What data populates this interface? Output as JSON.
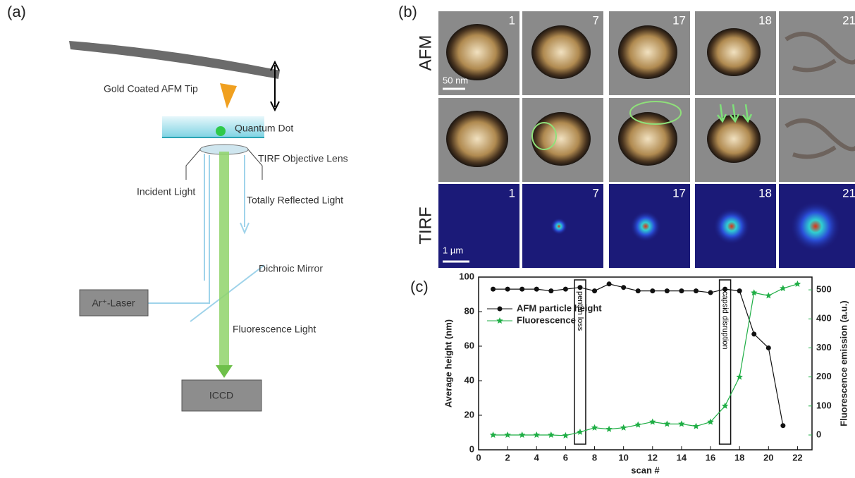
{
  "panel_labels": [
    "(a)",
    "(b)",
    "(c)"
  ],
  "diagram": {
    "labels": {
      "tip": "Gold Coated AFM Tip",
      "dot": "Quantum Dot",
      "lens": "TIRF Objective Lens",
      "incident": "Incident Light",
      "reflected": "Totally Reflected Light",
      "mirror": "Dichroic Mirror",
      "laser": "Ar⁺-Laser",
      "fluorescence": "Fluorescence Light",
      "camera": "ICCD"
    }
  },
  "images": {
    "row_labels": [
      "AFM",
      "TIRF"
    ],
    "frames": [
      "1",
      "7",
      "17",
      "18",
      "21"
    ],
    "afm_scale": "50 nm",
    "tirf_scale": "1 µm"
  },
  "chart_data": {
    "type": "line",
    "x": [
      1,
      2,
      3,
      4,
      5,
      6,
      7,
      8,
      9,
      10,
      11,
      12,
      13,
      14,
      15,
      16,
      17,
      18,
      19,
      20,
      21,
      22
    ],
    "series": [
      {
        "name": "AFM particle height",
        "color": "#111111",
        "marker": "circle",
        "values": [
          93,
          93,
          93,
          93,
          92,
          93,
          94,
          92,
          96,
          94,
          92,
          92,
          92,
          92,
          92,
          91,
          93,
          92,
          67,
          59,
          14,
          null
        ]
      },
      {
        "name": "Fluorescence",
        "color": "#1fae45",
        "marker": "star",
        "axis": "y2",
        "values": [
          0,
          0,
          0,
          0,
          0,
          -2,
          10,
          25,
          20,
          25,
          35,
          45,
          38,
          38,
          30,
          45,
          100,
          200,
          490,
          480,
          505,
          520
        ]
      }
    ],
    "xlim": [
      0,
      23
    ],
    "xticks": [
      0,
      2,
      4,
      6,
      8,
      10,
      12,
      14,
      16,
      18,
      20,
      22
    ],
    "ylim": [
      0,
      100
    ],
    "yticks": [
      0,
      20,
      40,
      60,
      80,
      100
    ],
    "y2lim": [
      -51,
      544
    ],
    "y2ticks": [
      0,
      100,
      200,
      300,
      400,
      500
    ],
    "xlabel": "scan #",
    "ylabel": "Average height (nm)",
    "y2label": "Fluorescence emission (a.u.)",
    "annotations": [
      {
        "text": "penton loss",
        "x": 7
      },
      {
        "text": "capsid disruption",
        "x": 17
      }
    ],
    "legend": "upper left"
  }
}
